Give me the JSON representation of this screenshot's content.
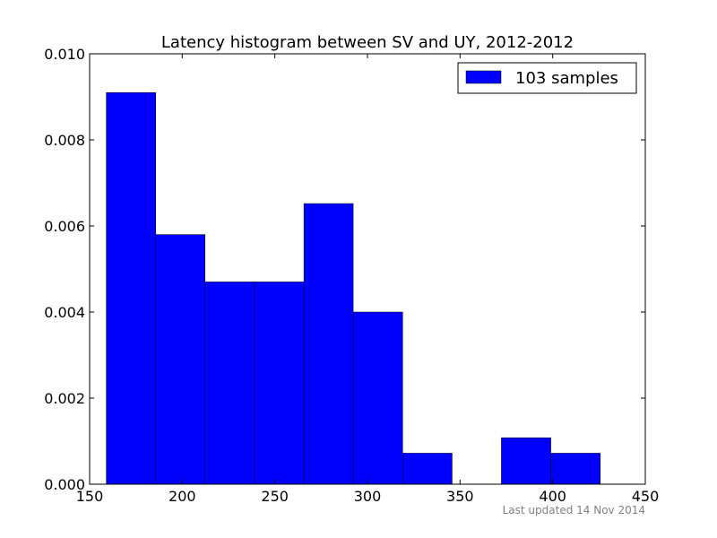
{
  "chart_data": {
    "type": "bar",
    "title": "Latency histogram between SV and UY, 2012-2012",
    "xlabel": "",
    "ylabel": "",
    "xlim": [
      150,
      450
    ],
    "ylim": [
      0,
      0.01
    ],
    "x_ticks": [
      "150",
      "200",
      "250",
      "300",
      "350",
      "400",
      "450"
    ],
    "y_ticks": [
      "0.000",
      "0.002",
      "0.004",
      "0.006",
      "0.008",
      "0.010"
    ],
    "bin_edges": [
      159,
      185.7,
      212.3,
      239,
      265.7,
      292.3,
      319,
      345.7,
      372.3,
      399,
      425.7
    ],
    "values": [
      0.0091,
      0.0058,
      0.0047,
      0.0047,
      0.00652,
      0.004,
      0.00072,
      0.0,
      0.00108,
      0.00072
    ],
    "legend": {
      "label": "103 samples",
      "position": "top-right"
    },
    "bar_color": "#0000ff",
    "grid": false
  },
  "footer": {
    "text": "Last updated 14 Nov 2014"
  }
}
